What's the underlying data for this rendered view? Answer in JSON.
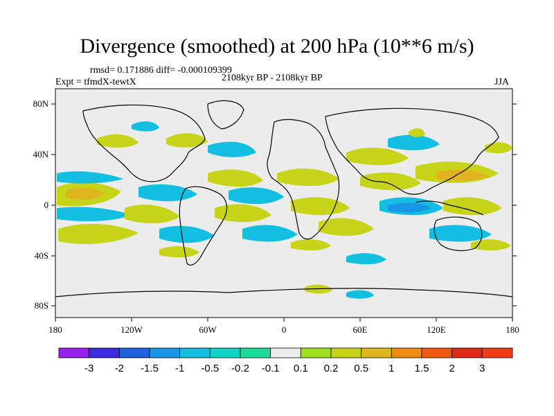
{
  "header": {
    "title": "Divergence (smoothed) at 200 hPa (10**6 m/s)",
    "stats": "rmsd= 0.171886 diff= -0.000109399",
    "experiment": "Expt = tfmdX-tewtX",
    "period": "2108kyr BP - 2108kyr BP",
    "season": "JJA"
  },
  "axes": {
    "lat_labels": [
      "80N",
      "40N",
      "0",
      "40S",
      "80S"
    ],
    "lon_labels": [
      "180",
      "120W",
      "60W",
      "0",
      "60E",
      "120E",
      "180"
    ]
  },
  "colorbar": {
    "labels": [
      "-3",
      "-2",
      "-1.5",
      "-1",
      "-0.5",
      "-0.2",
      "-0.1",
      "0.1",
      "0.2",
      "0.5",
      "1",
      "1.5",
      "2",
      "3"
    ],
    "colors": [
      "#9a1ef0",
      "#3c2be0",
      "#1f62e0",
      "#1a96e6",
      "#12bfe0",
      "#10d4c4",
      "#19dc99",
      "#ececec",
      "#9ee01a",
      "#c8d41a",
      "#e0b41e",
      "#f08a14",
      "#f05a0e",
      "#e02814",
      "#f03c14"
    ]
  },
  "colors": {
    "background": "#ececec",
    "land_outline": "#000000"
  }
}
